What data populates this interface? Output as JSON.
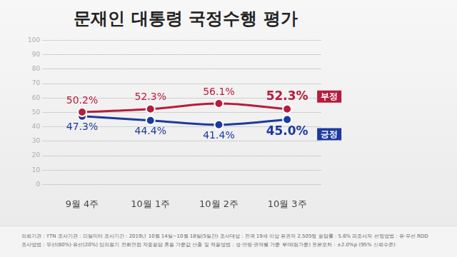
{
  "chart_data": {
    "type": "line",
    "title": "문재인 대통령 국정수행 평가",
    "categories": [
      "9월 4주",
      "10월 1주",
      "10월 2주",
      "10월 3주"
    ],
    "series": [
      {
        "name": "부정",
        "color": "#b71c3c",
        "marker": "circle",
        "values": [
          50.2,
          52.3,
          56.1,
          52.3
        ],
        "value_labels": [
          "50.2%",
          "52.3%",
          "56.1%",
          "52.3%"
        ]
      },
      {
        "name": "긍정",
        "color": "#1c3a9e",
        "marker": "circle",
        "values": [
          47.3,
          44.4,
          41.4,
          45.0
        ],
        "value_labels": [
          "47.3%",
          "44.4%",
          "41.4%",
          "45.0%"
        ]
      }
    ],
    "ylim": [
      0,
      100
    ],
    "yticks": [
      0,
      10,
      20,
      30,
      40,
      50,
      60,
      70,
      80,
      90,
      100
    ],
    "grid": true,
    "data_labels": true,
    "annotations": [
      "의뢰기관 : YTN   조사기관 : 리얼미터   조사기간 : 2019년 10월 14일~10월 18일(5일간)   조사대상 : 전국 19세 이상 유권자 2,505명   응답률 : 5.6%   피조사자 선정방법 : 유·무선 RDD",
      "조사방법 : 무선(80%)·유선(20%) 임의걸기 전화면접 자동응답 혼용   가중값 산출 및 적용방법 : 성·연령·권역별 가중 부여(림가중)   표본오차 : ±2.0%p (95% 신뢰수준)"
    ]
  }
}
